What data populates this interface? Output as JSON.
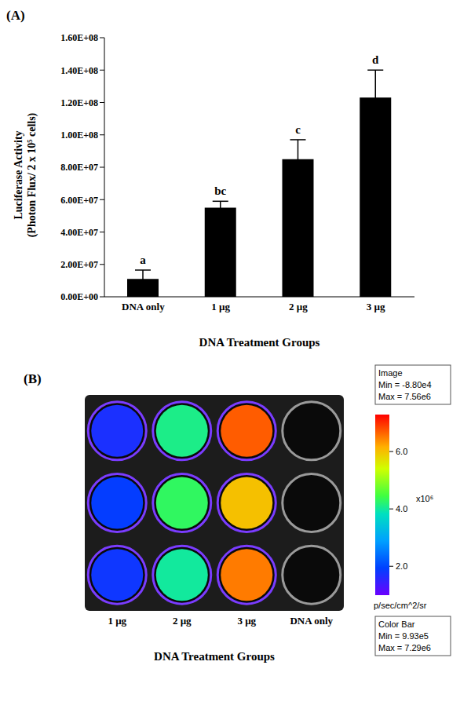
{
  "chart_data": [
    {
      "type": "bar",
      "title": "(A)",
      "categories": [
        "DNA only",
        "1 µg",
        "2 µg",
        "3 µg"
      ],
      "values": [
        11000000,
        55000000,
        85000000,
        123000000
      ],
      "errors": [
        5500000,
        4000000,
        12000000,
        17000000
      ],
      "annotations": [
        "a",
        "bc",
        "c",
        "d"
      ],
      "color": "#000000",
      "ylim": [
        0,
        160000000
      ],
      "yticks": [
        {
          "value": 0,
          "label": "0.00E+00"
        },
        {
          "value": 20000000,
          "label": "2.00E+07"
        },
        {
          "value": 40000000,
          "label": "4.00E+07"
        },
        {
          "value": 60000000,
          "label": "6.00E+07"
        },
        {
          "value": 80000000,
          "label": "8.00E+07"
        },
        {
          "value": 100000000,
          "label": "1.00E+08"
        },
        {
          "value": 120000000,
          "label": "1.20E+08"
        },
        {
          "value": 140000000,
          "label": "1.40E+08"
        },
        {
          "value": 160000000,
          "label": "1.60E+08"
        }
      ],
      "x_label": "DNA Treatment Groups",
      "y_label": [
        "Luciferase Activity",
        "(Photon Flux/ 2 x 10⁵ cells)"
      ]
    },
    {
      "type": "heatmap",
      "title": "(B)",
      "categories": [
        "1 µg",
        "2 µg",
        "3 µg",
        "DNA only"
      ],
      "cells": [
        [
          1800000,
          4000000,
          6500000,
          300000
        ],
        [
          1900000,
          4300000,
          6000000,
          300000
        ],
        [
          1700000,
          4100000,
          6700000,
          300000
        ]
      ],
      "x_label": "DNA Treatment Groups",
      "colorbar": {
        "range": [
          993000,
          7290000
        ],
        "ticks": [
          {
            "value": 2000000,
            "label": "2.0"
          },
          {
            "value": 4000000,
            "label": "4.0"
          },
          {
            "value": 6000000,
            "label": "6.0"
          }
        ],
        "exponent_label": "x10⁶",
        "unit": "p/sec/cm^2/sr",
        "title": "Color Bar",
        "min_label": "Min = 9.93e5",
        "max_label": "Max = 7.29e6"
      },
      "image_box": {
        "title": "Image",
        "min_label": "Min = -8.80e4",
        "max_label": "Max = 7.56e6"
      }
    }
  ]
}
